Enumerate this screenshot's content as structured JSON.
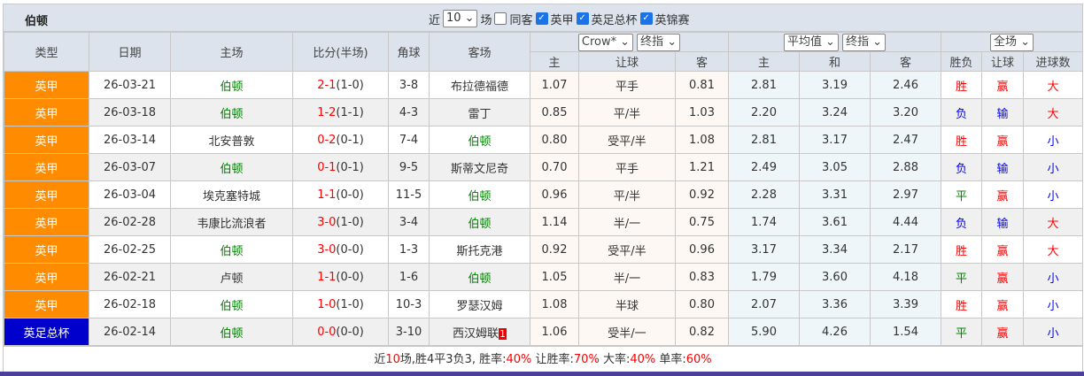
{
  "team": "伯顿",
  "filters": {
    "near": "近",
    "count": "10",
    "unit": "场",
    "same_venue": "同客",
    "same_venue_checked": false,
    "leagues": [
      {
        "label": "英甲",
        "checked": true
      },
      {
        "label": "英足总杯",
        "checked": true
      },
      {
        "label": "英锦赛",
        "checked": true
      }
    ]
  },
  "columns": {
    "type": "类型",
    "date": "日期",
    "home": "主场",
    "score": "比分(半场)",
    "corner": "角球",
    "away": "客场",
    "odds_company": "Crow*",
    "odds_kind": "终指",
    "avg": "平均值",
    "avg_kind": "终指",
    "scope": "全场",
    "o_home": "主",
    "handicap": "让球",
    "o_away": "客",
    "e_home": "主",
    "e_draw": "和",
    "e_away": "客",
    "wl": "胜负",
    "hc": "让球",
    "goals": "进球数"
  },
  "rows": [
    {
      "type": "英甲",
      "cup": false,
      "date": "26-03-21",
      "home": "伯顿",
      "home_team": true,
      "ft": "2-1",
      "ht": "(1-0)",
      "corner": "3-8",
      "away": "布拉德福德",
      "away_team": false,
      "oh": "1.07",
      "hcap": "平手",
      "oa": "0.81",
      "eh": "2.81",
      "ed": "3.19",
      "ea": "2.46",
      "wl": "胜",
      "hc": "赢",
      "goals": "大"
    },
    {
      "type": "英甲",
      "cup": false,
      "date": "26-03-18",
      "home": "伯顿",
      "home_team": true,
      "ft": "1-2",
      "ht": "(1-1)",
      "corner": "4-3",
      "away": "雷丁",
      "away_team": false,
      "oh": "0.85",
      "hcap": "平/半",
      "oa": "1.03",
      "eh": "2.20",
      "ed": "3.24",
      "ea": "3.20",
      "wl": "负",
      "hc": "输",
      "goals": "大"
    },
    {
      "type": "英甲",
      "cup": false,
      "date": "26-03-14",
      "home": "北安普敦",
      "home_team": false,
      "ft": "0-2",
      "ht": "(0-1)",
      "corner": "7-4",
      "away": "伯顿",
      "away_team": true,
      "oh": "0.80",
      "hcap": "受平/半",
      "oa": "1.08",
      "eh": "2.81",
      "ed": "3.17",
      "ea": "2.47",
      "wl": "胜",
      "hc": "赢",
      "goals": "小"
    },
    {
      "type": "英甲",
      "cup": false,
      "date": "26-03-07",
      "home": "伯顿",
      "home_team": true,
      "ft": "0-1",
      "ht": "(0-1)",
      "corner": "9-5",
      "away": "斯蒂文尼奇",
      "away_team": false,
      "oh": "0.70",
      "hcap": "平手",
      "oa": "1.21",
      "eh": "2.49",
      "ed": "3.05",
      "ea": "2.88",
      "wl": "负",
      "hc": "输",
      "goals": "小"
    },
    {
      "type": "英甲",
      "cup": false,
      "date": "26-03-04",
      "home": "埃克塞特城",
      "home_team": false,
      "ft": "1-1",
      "ht": "(0-0)",
      "corner": "11-5",
      "away": "伯顿",
      "away_team": true,
      "oh": "0.96",
      "hcap": "平/半",
      "oa": "0.92",
      "eh": "2.28",
      "ed": "3.31",
      "ea": "2.97",
      "wl": "平",
      "hc": "赢",
      "goals": "小"
    },
    {
      "type": "英甲",
      "cup": false,
      "date": "26-02-28",
      "home": "韦康比流浪者",
      "home_team": false,
      "ft": "3-0",
      "ht": "(1-0)",
      "corner": "3-4",
      "away": "伯顿",
      "away_team": true,
      "oh": "1.14",
      "hcap": "半/一",
      "oa": "0.75",
      "eh": "1.74",
      "ed": "3.61",
      "ea": "4.44",
      "wl": "负",
      "hc": "输",
      "goals": "大"
    },
    {
      "type": "英甲",
      "cup": false,
      "date": "26-02-25",
      "home": "伯顿",
      "home_team": true,
      "ft": "3-0",
      "ht": "(0-0)",
      "corner": "1-3",
      "away": "斯托克港",
      "away_team": false,
      "oh": "0.92",
      "hcap": "受平/半",
      "oa": "0.96",
      "eh": "3.17",
      "ed": "3.34",
      "ea": "2.17",
      "wl": "胜",
      "hc": "赢",
      "goals": "大"
    },
    {
      "type": "英甲",
      "cup": false,
      "date": "26-02-21",
      "home": "卢顿",
      "home_team": false,
      "ft": "1-1",
      "ht": "(0-0)",
      "corner": "1-6",
      "away": "伯顿",
      "away_team": true,
      "oh": "1.05",
      "hcap": "半/一",
      "oa": "0.83",
      "eh": "1.79",
      "ed": "3.60",
      "ea": "4.18",
      "wl": "平",
      "hc": "赢",
      "goals": "小"
    },
    {
      "type": "英甲",
      "cup": false,
      "date": "26-02-18",
      "home": "伯顿",
      "home_team": true,
      "ft": "1-0",
      "ht": "(1-0)",
      "corner": "10-3",
      "away": "罗瑟汉姆",
      "away_team": false,
      "oh": "1.08",
      "hcap": "半球",
      "oa": "0.80",
      "eh": "2.07",
      "ed": "3.36",
      "ea": "3.39",
      "wl": "胜",
      "hc": "赢",
      "goals": "小"
    },
    {
      "type": "英足总杯",
      "cup": true,
      "date": "26-02-14",
      "home": "伯顿",
      "home_team": true,
      "ft": "0-0",
      "ht": "(0-0)",
      "corner": "3-10",
      "away": "西汉姆联",
      "away_team": false,
      "away_badge": "1",
      "oh": "1.06",
      "hcap": "受半/一",
      "oa": "0.82",
      "eh": "5.90",
      "ed": "4.26",
      "ea": "1.54",
      "wl": "平",
      "hc": "赢",
      "goals": "小"
    }
  ],
  "summary": {
    "p1": "近",
    "n": "10",
    "p2": "场,胜4平3负3, 胜率:",
    "win": "40%",
    "p3": " 让胜率:",
    "hwin": "70%",
    "p4": " 大率:",
    "big": "40%",
    "p5": " 单率:",
    "odd": "60%"
  },
  "colors": {
    "league": "#ff8c00",
    "cup": "#0000cc",
    "win": "#ff0000",
    "loss": "#0000ff",
    "draw": "#008000"
  }
}
